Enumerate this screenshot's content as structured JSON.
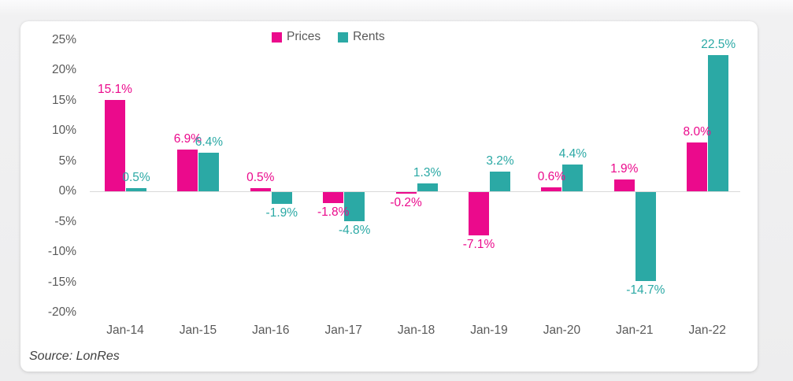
{
  "source_note": "Source: LonRes",
  "colors": {
    "prices": "#EB0A8C",
    "rents": "#2BA9A5",
    "axis_text": "#595959",
    "baseline": "#d9d9d9",
    "card_background": "#ffffff"
  },
  "legend": [
    {
      "label": "Prices",
      "color": "#EB0A8C"
    },
    {
      "label": "Rents",
      "color": "#2BA9A5"
    }
  ],
  "chart_data": {
    "type": "bar",
    "categories": [
      "Jan-14",
      "Jan-15",
      "Jan-16",
      "Jan-17",
      "Jan-18",
      "Jan-19",
      "Jan-20",
      "Jan-21",
      "Jan-22"
    ],
    "series": [
      {
        "name": "Prices",
        "color": "#EB0A8C",
        "values": [
          15.1,
          6.9,
          0.5,
          -1.8,
          -0.2,
          -7.1,
          0.6,
          1.9,
          8.0
        ],
        "labels": [
          "15.1%",
          "6.9%",
          "0.5%",
          "-1.8%",
          "-0.2%",
          "-7.1%",
          "0.6%",
          "1.9%",
          "8.0%"
        ]
      },
      {
        "name": "Rents",
        "color": "#2BA9A5",
        "values": [
          0.5,
          6.4,
          -1.9,
          -4.8,
          1.3,
          3.2,
          4.4,
          -14.7,
          22.5
        ],
        "labels": [
          "0.5%",
          "6.4%",
          "-1.9%",
          "-4.8%",
          "1.3%",
          "3.2%",
          "4.4%",
          "-14.7%",
          "22.5%"
        ]
      }
    ],
    "title": "",
    "xlabel": "",
    "ylabel": "",
    "ylim": [
      -20,
      25
    ],
    "y_ticks": [
      "25%",
      "20%",
      "15%",
      "10%",
      "5%",
      "0%",
      "-5%",
      "-10%",
      "-15%",
      "-20%"
    ],
    "y_tick_values": [
      25,
      20,
      15,
      10,
      5,
      0,
      -5,
      -10,
      -15,
      -20
    ],
    "grid": false,
    "legend_position": "top-center",
    "data_labels": "outside-end, colored to match series"
  }
}
